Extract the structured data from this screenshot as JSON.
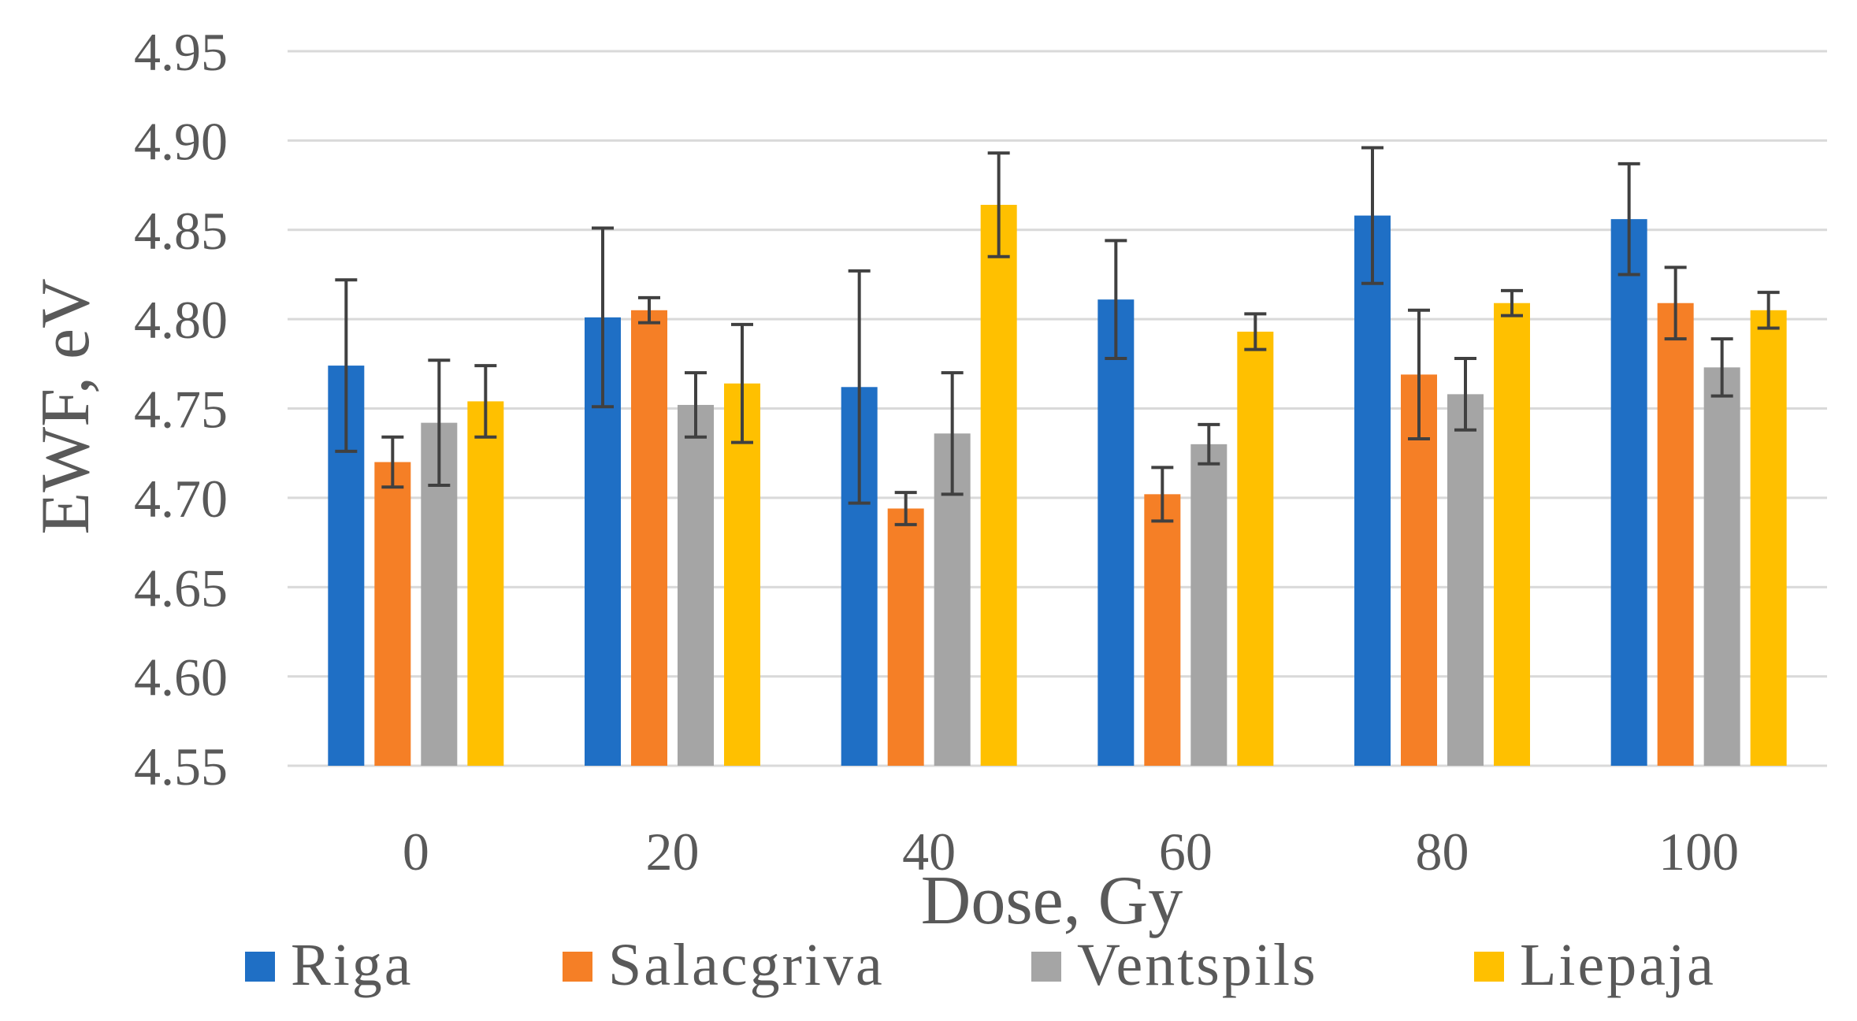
{
  "chart_data": {
    "type": "bar",
    "title": "",
    "xlabel": "Dose, Gy",
    "ylabel": "EWF, eV",
    "ylim": [
      4.55,
      4.95
    ],
    "yticks": [
      "4.55",
      "4.60",
      "4.65",
      "4.70",
      "4.75",
      "4.80",
      "4.85",
      "4.90",
      "4.95"
    ],
    "grid": true,
    "legend_position": "bottom",
    "categories": [
      "0",
      "20",
      "40",
      "60",
      "80",
      "100"
    ],
    "series": [
      {
        "name": "Riga",
        "color": "#1F6FC5",
        "values": [
          4.774,
          4.801,
          4.762,
          4.811,
          4.858,
          4.856
        ],
        "errors": [
          0.048,
          0.05,
          0.065,
          0.033,
          0.038,
          0.031
        ]
      },
      {
        "name": "Salacgriva",
        "color": "#F57F26",
        "values": [
          4.72,
          4.805,
          4.694,
          4.702,
          4.769,
          4.809
        ],
        "errors": [
          0.014,
          0.007,
          0.009,
          0.015,
          0.036,
          0.02
        ]
      },
      {
        "name": "Ventspils",
        "color": "#A5A5A5",
        "values": [
          4.742,
          4.752,
          4.736,
          4.73,
          4.758,
          4.773
        ],
        "errors": [
          0.035,
          0.018,
          0.034,
          0.011,
          0.02,
          0.016
        ]
      },
      {
        "name": "Liepaja",
        "color": "#FFC000",
        "values": [
          4.754,
          4.764,
          4.864,
          4.793,
          4.809,
          4.805
        ],
        "errors": [
          0.02,
          0.033,
          0.029,
          0.01,
          0.007,
          0.01
        ]
      }
    ]
  }
}
